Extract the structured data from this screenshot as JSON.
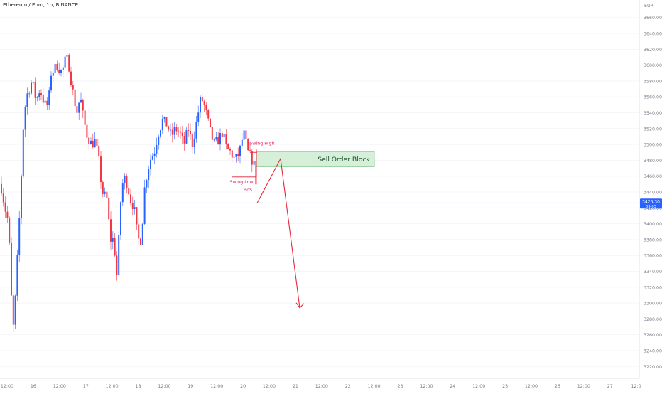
{
  "header": {
    "symbol_title": "Ethereum / Euro, 1h, BINANCE",
    "currency": "EUR"
  },
  "price_tag": {
    "price": "3426.30",
    "countdown": "09:03"
  },
  "colors": {
    "up": "#2962ff",
    "down": "#f23645",
    "annotation_red": "#e5263a",
    "swing_text": "#e91e63",
    "order_block_fill": "#d6efd9",
    "order_block_border": "#7cc281",
    "order_block_text": "#1b4d2e",
    "axis_text": "#787b86",
    "price_line": "#c8d3f5"
  },
  "annotations": {
    "swing_high": "Swing High",
    "swing_low": "Swing Low",
    "bos": "BoS",
    "sell_order_block": "Sell Order Block"
  },
  "chart_data": {
    "type": "candlestick",
    "title": "Ethereum / Euro, 1h, BINANCE",
    "ylabel": "EUR",
    "ylim": [
      3205,
      3675
    ],
    "y_ticks": [
      3660,
      3640,
      3620,
      3600,
      3580,
      3560,
      3540,
      3520,
      3500,
      3480,
      3460,
      3440,
      3420,
      3400,
      3380,
      3360,
      3340,
      3320,
      3300,
      3280,
      3260,
      3240,
      3220
    ],
    "x_ticks": [
      "12:00",
      "16",
      "12:00",
      "17",
      "12:00",
      "18",
      "12:00",
      "19",
      "12:00",
      "20",
      "12:00",
      "21",
      "12:00",
      "22",
      "12:00",
      "23",
      "12:00",
      "24",
      "12:00",
      "25",
      "12:00",
      "26",
      "12:00",
      "27",
      "12:0"
    ],
    "last_price": 3426.3,
    "ohlc_anchors": [
      {
        "x": 0,
        "y": 3450
      },
      {
        "x": 6,
        "y": 3420
      },
      {
        "x": 11,
        "y": 3400
      },
      {
        "x": 17,
        "y": 3260
      },
      {
        "x": 21,
        "y": 3310
      },
      {
        "x": 28,
        "y": 3440
      },
      {
        "x": 32,
        "y": 3525
      },
      {
        "x": 36,
        "y": 3560
      },
      {
        "x": 44,
        "y": 3580
      },
      {
        "x": 50,
        "y": 3555
      },
      {
        "x": 55,
        "y": 3570
      },
      {
        "x": 62,
        "y": 3550
      },
      {
        "x": 67,
        "y": 3550
      },
      {
        "x": 71,
        "y": 3590
      },
      {
        "x": 80,
        "y": 3600
      },
      {
        "x": 86,
        "y": 3590
      },
      {
        "x": 92,
        "y": 3610
      },
      {
        "x": 96,
        "y": 3600
      },
      {
        "x": 101,
        "y": 3570
      },
      {
        "x": 107,
        "y": 3540
      },
      {
        "x": 112,
        "y": 3560
      },
      {
        "x": 117,
        "y": 3530
      },
      {
        "x": 122,
        "y": 3510
      },
      {
        "x": 128,
        "y": 3500
      },
      {
        "x": 133,
        "y": 3505
      },
      {
        "x": 138,
        "y": 3480
      },
      {
        "x": 143,
        "y": 3440
      },
      {
        "x": 150,
        "y": 3430
      },
      {
        "x": 154,
        "y": 3380
      },
      {
        "x": 159,
        "y": 3380
      },
      {
        "x": 164,
        "y": 3330
      },
      {
        "x": 168,
        "y": 3420
      },
      {
        "x": 173,
        "y": 3460
      },
      {
        "x": 178,
        "y": 3450
      },
      {
        "x": 183,
        "y": 3430
      },
      {
        "x": 188,
        "y": 3420
      },
      {
        "x": 193,
        "y": 3380
      },
      {
        "x": 198,
        "y": 3380
      },
      {
        "x": 203,
        "y": 3450
      },
      {
        "x": 210,
        "y": 3480
      },
      {
        "x": 216,
        "y": 3490
      },
      {
        "x": 222,
        "y": 3515
      },
      {
        "x": 228,
        "y": 3530
      },
      {
        "x": 234,
        "y": 3525
      },
      {
        "x": 240,
        "y": 3510
      },
      {
        "x": 246,
        "y": 3520
      },
      {
        "x": 252,
        "y": 3515
      },
      {
        "x": 258,
        "y": 3500
      },
      {
        "x": 264,
        "y": 3520
      },
      {
        "x": 270,
        "y": 3500
      },
      {
        "x": 276,
        "y": 3530
      },
      {
        "x": 282,
        "y": 3560
      },
      {
        "x": 288,
        "y": 3545
      },
      {
        "x": 294,
        "y": 3520
      },
      {
        "x": 300,
        "y": 3500
      },
      {
        "x": 306,
        "y": 3505
      },
      {
        "x": 312,
        "y": 3515
      },
      {
        "x": 318,
        "y": 3495
      },
      {
        "x": 324,
        "y": 3490
      },
      {
        "x": 330,
        "y": 3480
      },
      {
        "x": 336,
        "y": 3490
      },
      {
        "x": 342,
        "y": 3515
      },
      {
        "x": 348,
        "y": 3490
      },
      {
        "x": 354,
        "y": 3480
      },
      {
        "x": 358,
        "y": 3470
      },
      {
        "x": 362,
        "y": 3424
      }
    ],
    "projection_path": [
      {
        "x": 362,
        "y": 3426
      },
      {
        "x": 395,
        "y": 3482
      },
      {
        "x": 422,
        "y": 3294
      }
    ],
    "order_block": {
      "x0": 361,
      "x1": 527,
      "y_low": 3472,
      "y_high": 3491
    },
    "swing_high_level": 3490,
    "swing_low_level": 3459
  }
}
